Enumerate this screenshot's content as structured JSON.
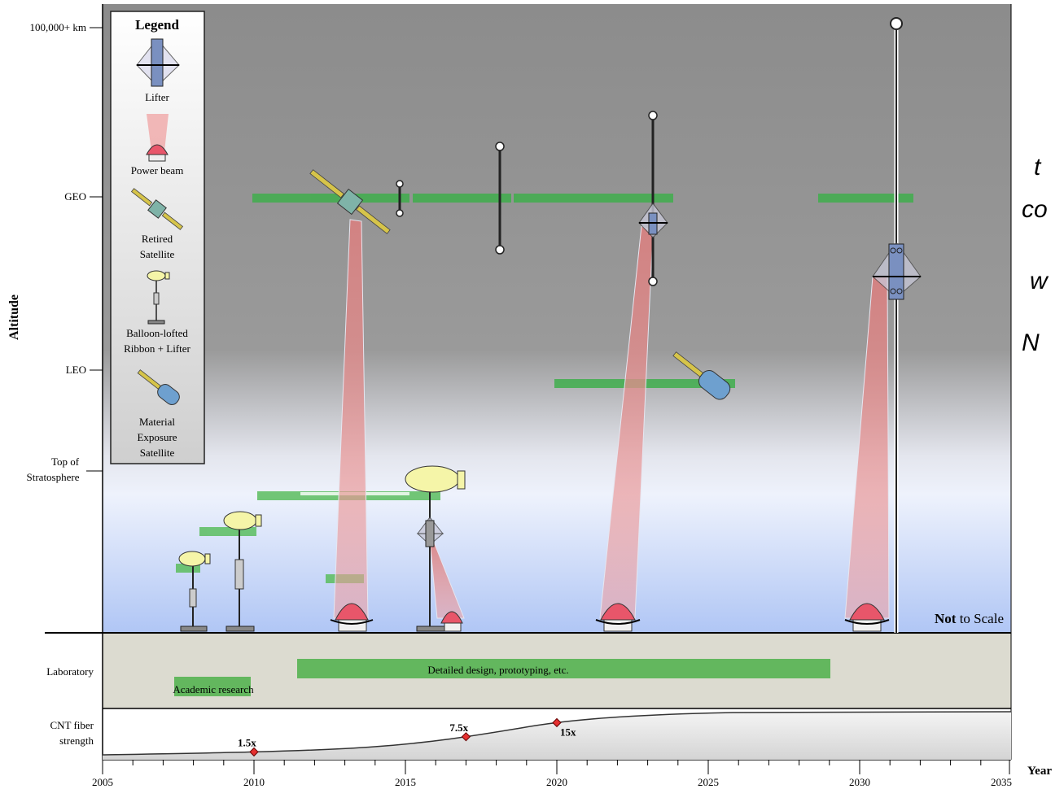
{
  "axes": {
    "y_label": "Altitude",
    "x_label": "Year",
    "y_ticks": [
      "100,000+ km",
      "GEO",
      "LEO",
      "Top of",
      "Stratosphere"
    ],
    "x_ticks": [
      "2005",
      "2010",
      "2015",
      "2020",
      "2025",
      "2030",
      "2035"
    ]
  },
  "legend": {
    "title": "Legend",
    "items": [
      {
        "lines": [
          "Lifter"
        ],
        "icon": "lifter-icon"
      },
      {
        "lines": [
          "Power beam"
        ],
        "icon": "power-beam-icon"
      },
      {
        "lines": [
          "Retired",
          "Satellite"
        ],
        "icon": "retired-satellite-icon"
      },
      {
        "lines": [
          "Balloon-lofted",
          "Ribbon + Lifter"
        ],
        "icon": "balloon-lifter-icon"
      },
      {
        "lines": [
          "Material",
          "Exposure",
          "Satellite"
        ],
        "icon": "exposure-satellite-icon"
      }
    ]
  },
  "scale_note": {
    "bold": "Not",
    "rest": " to Scale"
  },
  "rows": {
    "laboratory": "Laboratory",
    "cnt_1": "CNT fiber",
    "cnt_2": "strength"
  },
  "bars": {
    "academic": "Academic research",
    "design": "Detailed design, prototyping, etc."
  },
  "strength_points": [
    {
      "year": 2010,
      "label": "1.5x"
    },
    {
      "year": 2017,
      "label": "7.5x"
    },
    {
      "year": 2020,
      "label": "15x"
    }
  ],
  "side_note": [
    "t",
    "co",
    "w",
    "N"
  ],
  "colors": {
    "sky_top": "#8c8c8c",
    "sky_bottom": "#b4c9f5",
    "ground": "#dcdbd0",
    "bar_green": "#4db04a",
    "beam": "#ef8c8c",
    "balloon": "#f5f5a8"
  }
}
